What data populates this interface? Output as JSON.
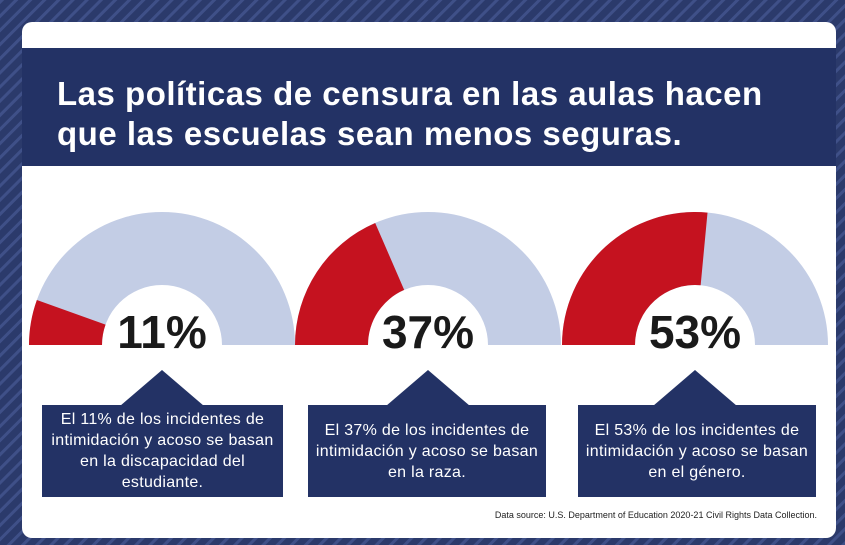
{
  "title": "Las políticas de censura en las aulas hacen que las escuelas sean menos seguras.",
  "chart_data": [
    {
      "type": "gauge",
      "values": [
        11
      ],
      "value_labels": [
        "11%"
      ],
      "ylim": [
        0,
        100
      ],
      "color": "#c5121f",
      "track_color": "#c3cde5",
      "caption": "El 11% de los incidentes de intimidación y acoso se basan en la discapacidad del estudiante."
    },
    {
      "type": "gauge",
      "values": [
        37
      ],
      "value_labels": [
        "37%"
      ],
      "ylim": [
        0,
        100
      ],
      "color": "#c5121f",
      "track_color": "#c3cde5",
      "caption": "El 37% de los incidentes de intimidación y acoso se basan en la raza."
    },
    {
      "type": "gauge",
      "values": [
        53
      ],
      "value_labels": [
        "53%"
      ],
      "ylim": [
        0,
        100
      ],
      "color": "#c5121f",
      "track_color": "#c3cde5",
      "caption": "El 53% de los incidentes de intimidación y acoso se basan en el género."
    }
  ],
  "source": "Data source: U.S. Department of Education 2020-21 Civil Rights Data Collection."
}
